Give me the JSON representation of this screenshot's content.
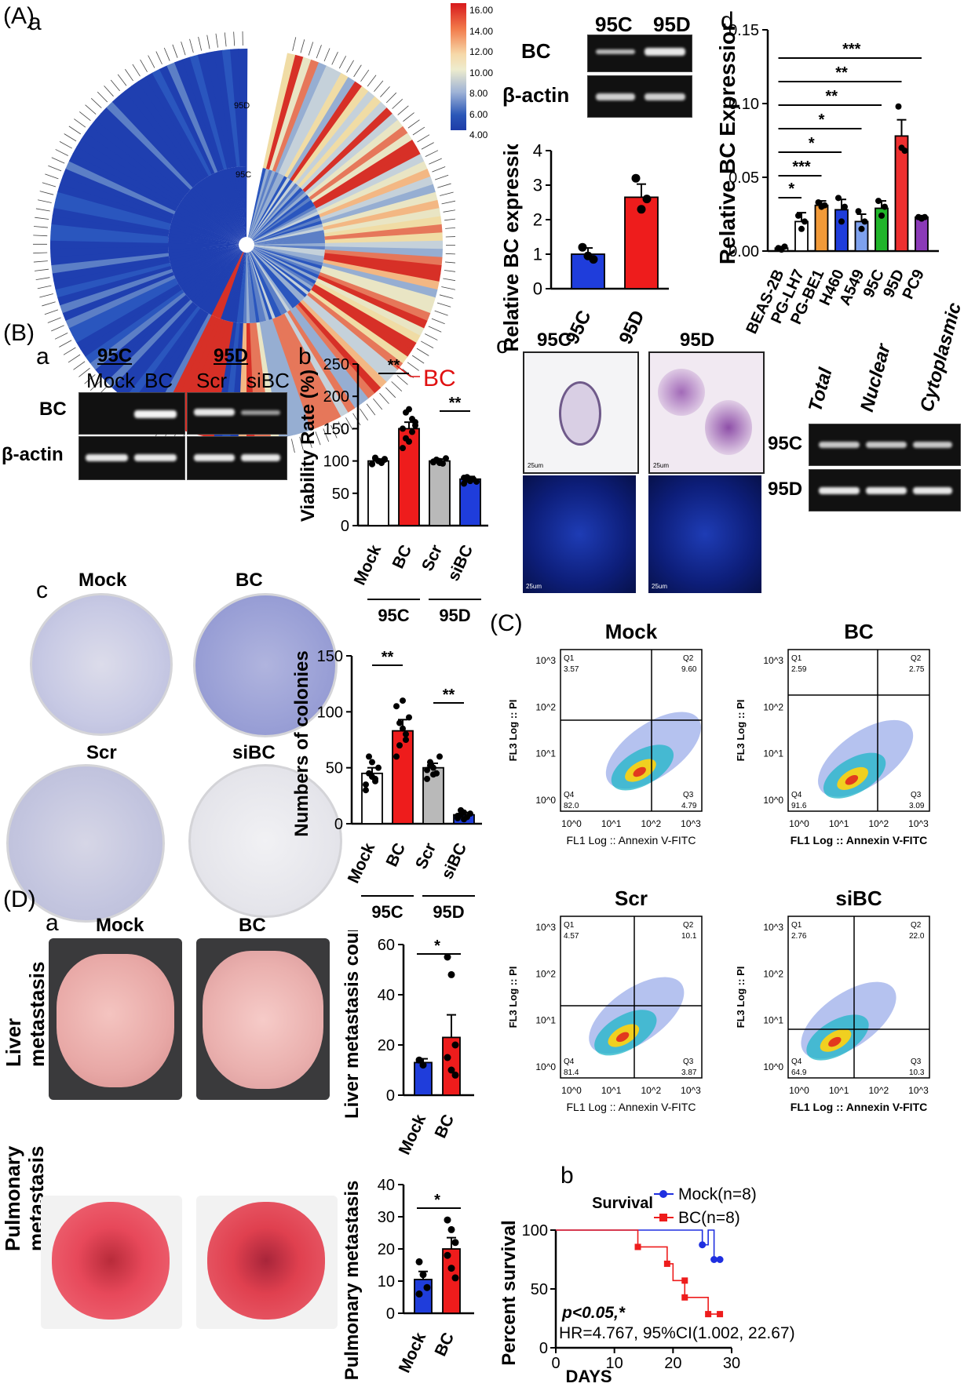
{
  "panels": {
    "A": "(A)",
    "B": "(B)",
    "C": "(C)",
    "D": "(D)",
    "a": "a",
    "b": "b",
    "c": "c",
    "d": "d"
  },
  "heatmap": {
    "legend_ticks": [
      "16.00",
      "14.00",
      "12.00",
      "10.00",
      "8.00",
      "6.00",
      "4.00"
    ],
    "outer_label": "95D",
    "inner_label": "95C",
    "highlight": "BC"
  },
  "gel_A": {
    "lanes": [
      "95C",
      "95D"
    ],
    "rows": [
      "BC",
      "β-actin"
    ]
  },
  "gel_B": {
    "groups": [
      "95C",
      "95D"
    ],
    "lanes": [
      "Mock",
      "BC",
      "Scr",
      "siBC"
    ],
    "rows": [
      "BC",
      "β-actin"
    ]
  },
  "fractionation": {
    "lanes": [
      "Total",
      "Nuclear",
      "Cytoplasmic"
    ],
    "rows": [
      "95C",
      "95D"
    ]
  },
  "ish": {
    "cols": [
      "95C",
      "95D"
    ],
    "scale": "25um"
  },
  "colony": {
    "labels": [
      "Mock",
      "BC",
      "Scr",
      "siBC"
    ]
  },
  "flow": {
    "xlabel": "FL1 Log :: Annexin V-FITC",
    "ylabel": "FL3 Log :: PI",
    "plots": [
      {
        "title": "Mock",
        "Q1": "Q1",
        "Q2": "Q2",
        "Q3": "Q3",
        "Q4": "Q4",
        "q1": "3.57",
        "q2": "9.60",
        "q3": "4.79",
        "q4": "82.0"
      },
      {
        "title": "BC",
        "Q1": "Q1",
        "Q2": "Q2",
        "Q3": "Q3",
        "Q4": "Q4",
        "q1": "2.59",
        "q2": "2.75",
        "q3": "3.09",
        "q4": "91.6"
      },
      {
        "title": "Scr",
        "Q1": "Q1",
        "Q2": "Q2",
        "Q3": "Q3",
        "Q4": "Q4",
        "q1": "4.57",
        "q2": "10.1",
        "q3": "3.87",
        "q4": "81.4"
      },
      {
        "title": "siBC",
        "Q1": "Q1",
        "Q2": "Q2",
        "Q3": "Q3",
        "Q4": "Q4",
        "q1": "2.76",
        "q2": "22.0",
        "q3": "10.3",
        "q4": "64.9"
      }
    ],
    "ticks": [
      "10^0",
      "10^1",
      "10^2",
      "10^3"
    ]
  },
  "mouse": {
    "cols": [
      "Mock",
      "BC"
    ],
    "rows": [
      "Liver metastasis",
      "Pulmonary metastasis"
    ]
  },
  "chart_data": [
    {
      "id": "A-b",
      "type": "bar",
      "categories": [
        "95C",
        "95D"
      ],
      "values": [
        1.0,
        2.65
      ],
      "errors": [
        0.18,
        0.38
      ],
      "points": [
        [
          1.2,
          0.95,
          0.85
        ],
        [
          3.2,
          2.3,
          2.6
        ]
      ],
      "colors": [
        "#1f3ddb",
        "#ee1c1c"
      ],
      "ylabel": "Relative BC expression",
      "ylim": [
        0,
        4
      ],
      "yticks": [
        "0",
        "1",
        "2",
        "3",
        "4"
      ]
    },
    {
      "id": "A-d",
      "type": "bar",
      "categories": [
        "BEAS-2B",
        "PG-LH7",
        "PG-BE1",
        "H460",
        "A549",
        "95C",
        "95D",
        "PC9"
      ],
      "values": [
        0.002,
        0.02,
        0.031,
        0.028,
        0.02,
        0.029,
        0.078,
        0.023
      ],
      "errors": [
        0.001,
        0.006,
        0.003,
        0.007,
        0.005,
        0.005,
        0.011,
        0.001
      ],
      "colors": [
        "#ffffff",
        "#ffffff",
        "#f29a38",
        "#1f3ddb",
        "#7ea1ee",
        "#20b52a",
        "#ee2f2f",
        "#8b3ab8"
      ],
      "ylabel": "Relative BC Expression",
      "ylim": [
        0,
        0.15
      ],
      "yticks": [
        "0.00",
        "0.05",
        "0.10",
        "0.15"
      ],
      "significance": [
        {
          "to": "PG-LH7",
          "label": "*"
        },
        {
          "to": "PG-BE1",
          "label": "***"
        },
        {
          "to": "H460",
          "label": "*"
        },
        {
          "to": "A549",
          "label": "*"
        },
        {
          "to": "95C",
          "label": "**"
        },
        {
          "to": "95D",
          "label": "**"
        },
        {
          "to": "PC9",
          "label": "***"
        }
      ]
    },
    {
      "id": "B-b",
      "type": "bar",
      "categories": [
        "Mock",
        "BC",
        "Scr",
        "siBC"
      ],
      "values": [
        100,
        150,
        100,
        72
      ],
      "errors": [
        3,
        10,
        3,
        4
      ],
      "colors": [
        "#ffffff",
        "#ee1c1c",
        "#b9b9b9",
        "#1f3ddb"
      ],
      "ylabel": "Viability Rate (%)",
      "ylim": [
        0,
        250
      ],
      "yticks": [
        "0",
        "50",
        "100",
        "150",
        "200",
        "250"
      ],
      "groups": [
        "95C",
        "95D"
      ],
      "significance": [
        "**",
        "**"
      ]
    },
    {
      "id": "B-c",
      "type": "bar",
      "categories": [
        "Mock",
        "BC",
        "Scr",
        "siBC"
      ],
      "values": [
        45,
        83,
        50,
        8
      ],
      "errors": [
        5,
        10,
        4,
        2
      ],
      "colors": [
        "#ffffff",
        "#ee1c1c",
        "#b9b9b9",
        "#1f3ddb"
      ],
      "ylabel": "Numbers of colonies",
      "ylim": [
        0,
        150
      ],
      "yticks": [
        "0",
        "50",
        "100",
        "150"
      ],
      "groups": [
        "95C",
        "95D"
      ],
      "significance": [
        "**",
        "**"
      ]
    },
    {
      "id": "D-liver",
      "type": "bar",
      "categories": [
        "Mock",
        "BC"
      ],
      "values": [
        13,
        23
      ],
      "errors": [
        1.5,
        9
      ],
      "colors": [
        "#1f3ddb",
        "#ee1c1c"
      ],
      "ylabel": "Liver metastasis count",
      "ylim": [
        0,
        60
      ],
      "yticks": [
        "0",
        "20",
        "40",
        "60"
      ],
      "significance": [
        "*"
      ]
    },
    {
      "id": "D-lung",
      "type": "bar",
      "categories": [
        "Mock",
        "BC"
      ],
      "values": [
        10.5,
        20
      ],
      "errors": [
        2.5,
        3.5
      ],
      "colors": [
        "#1f3ddb",
        "#ee1c1c"
      ],
      "ylabel": "Pulmonary metastasis count",
      "ylim": [
        0,
        40
      ],
      "yticks": [
        "0",
        "10",
        "20",
        "30",
        "40"
      ],
      "significance": [
        "*"
      ]
    },
    {
      "id": "D-b",
      "type": "line",
      "title": "Survival",
      "xlabel": "DAYS",
      "ylabel": "Percent survival",
      "xlim": [
        0,
        30
      ],
      "ylim": [
        0,
        100
      ],
      "xticks": [
        "0",
        "10",
        "20",
        "30"
      ],
      "yticks": [
        "0",
        "50",
        "100"
      ],
      "series": [
        {
          "name": "Mock(n=8)",
          "color": "#1f2fe0",
          "x": [
            0,
            25,
            25,
            26,
            26,
            27,
            27,
            28
          ],
          "y": [
            100,
            100,
            87.5,
            87.5,
            100,
            100,
            75,
            75
          ]
        },
        {
          "name": "BC(n=8)",
          "color": "#ee1c1c",
          "x": [
            0,
            14,
            14,
            19,
            19,
            20,
            20,
            22,
            22,
            23,
            23,
            25,
            25,
            26,
            26,
            28
          ],
          "y": [
            100,
            100,
            85.7,
            85.7,
            71.4,
            71.4,
            57.1,
            57.1,
            42.8,
            42.8,
            42.8,
            42.8,
            42.8,
            42.8,
            28.6,
            28.6
          ]
        }
      ],
      "annotation1": "p<0.05,*",
      "annotation2": "HR=4.767, 95%CI(1.002, 22.67)"
    }
  ]
}
